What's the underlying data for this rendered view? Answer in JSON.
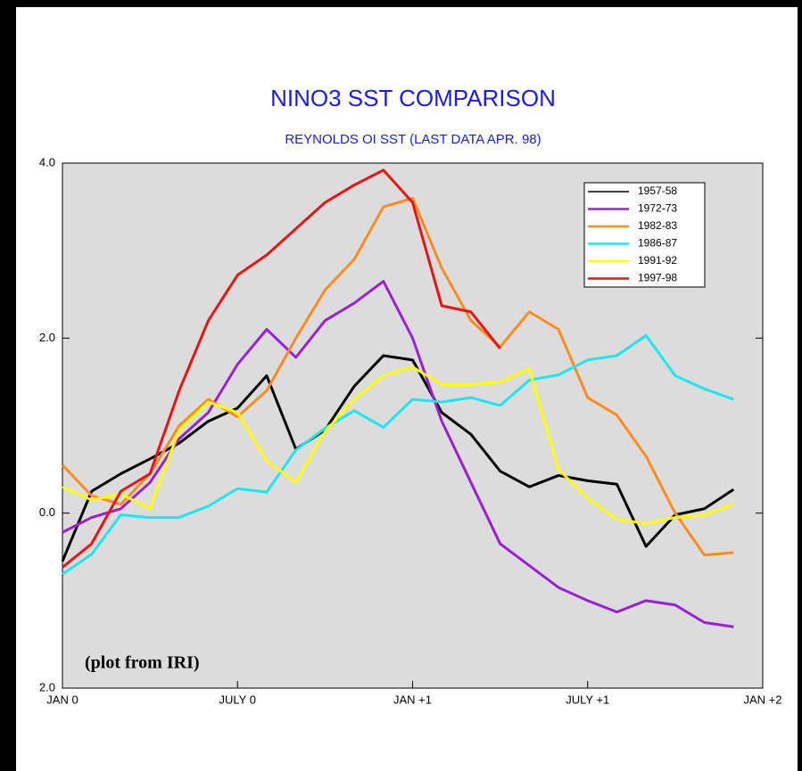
{
  "chart_data": {
    "type": "line",
    "title": "NINO3 SST COMPARISON",
    "subtitle": "REYNOLDS OI SST (LAST DATA APR. 98)",
    "annotation": "(plot from IRI)",
    "x": [
      0,
      1,
      2,
      3,
      4,
      5,
      6,
      7,
      8,
      9,
      10,
      11,
      12,
      13,
      14,
      15,
      16,
      17,
      18,
      19,
      20,
      21,
      22,
      23
    ],
    "xlim": [
      0,
      24
    ],
    "xticks": [
      {
        "value": 0,
        "label": "JAN 0"
      },
      {
        "value": 6,
        "label": "JULY 0"
      },
      {
        "value": 12,
        "label": "JAN +1"
      },
      {
        "value": 18,
        "label": "JULY +1"
      },
      {
        "value": 24,
        "label": "JAN +2"
      }
    ],
    "ylim": [
      -2,
      4
    ],
    "yticks": [
      {
        "value": -2,
        "label": "2.0"
      },
      {
        "value": 0,
        "label": "0.0"
      },
      {
        "value": 2,
        "label": "2.0"
      },
      {
        "value": 4,
        "label": "4.0"
      }
    ],
    "legend": "upper right",
    "series": [
      {
        "name": "1957-58",
        "color": "#000000",
        "values": [
          -0.55,
          0.25,
          0.45,
          0.62,
          0.8,
          1.05,
          1.2,
          1.57,
          0.73,
          0.95,
          1.45,
          1.8,
          1.75,
          1.15,
          0.9,
          0.48,
          0.3,
          0.43,
          0.37,
          0.33,
          -0.38,
          -0.02,
          0.05,
          0.27
        ]
      },
      {
        "name": "1972-73",
        "color": "#9a1fd6",
        "values": [
          -0.22,
          -0.05,
          0.05,
          0.35,
          0.85,
          1.15,
          1.7,
          2.1,
          1.78,
          2.2,
          2.4,
          2.65,
          2.0,
          1.05,
          0.35,
          -0.35,
          -0.6,
          -0.85,
          -1.0,
          -1.13,
          -1.0,
          -1.05,
          -1.25,
          -1.3
        ]
      },
      {
        "name": "1982-83",
        "color": "#ff8c1a",
        "values": [
          0.55,
          0.2,
          0.1,
          0.45,
          1.0,
          1.3,
          1.1,
          1.4,
          2.0,
          2.55,
          2.9,
          3.5,
          3.6,
          2.8,
          2.2,
          1.9,
          2.3,
          2.1,
          1.32,
          1.12,
          0.65,
          0.0,
          -0.48,
          -0.45
        ]
      },
      {
        "name": "1986-87",
        "color": "#1ae8f0",
        "values": [
          -0.7,
          -0.47,
          -0.02,
          -0.05,
          -0.05,
          0.08,
          0.28,
          0.24,
          0.72,
          0.97,
          1.17,
          0.98,
          1.3,
          1.27,
          1.32,
          1.23,
          1.52,
          1.58,
          1.75,
          1.8,
          2.03,
          1.57,
          1.42,
          1.3
        ]
      },
      {
        "name": "1991-92",
        "color": "#ffff00",
        "values": [
          0.3,
          0.15,
          0.22,
          0.05,
          0.95,
          1.27,
          1.15,
          0.6,
          0.35,
          0.93,
          1.3,
          1.57,
          1.67,
          1.47,
          1.47,
          1.5,
          1.65,
          0.5,
          0.17,
          -0.07,
          -0.12,
          -0.05,
          -0.02,
          0.1
        ]
      },
      {
        "name": "1997-98",
        "color": "#ee1111",
        "values": [
          -0.62,
          -0.35,
          0.25,
          0.45,
          1.4,
          2.2,
          2.72,
          2.95,
          3.25,
          3.55,
          3.75,
          3.92,
          3.55,
          2.37,
          2.3,
          1.88,
          null,
          null,
          null,
          null,
          null,
          null,
          null,
          null
        ]
      }
    ]
  }
}
